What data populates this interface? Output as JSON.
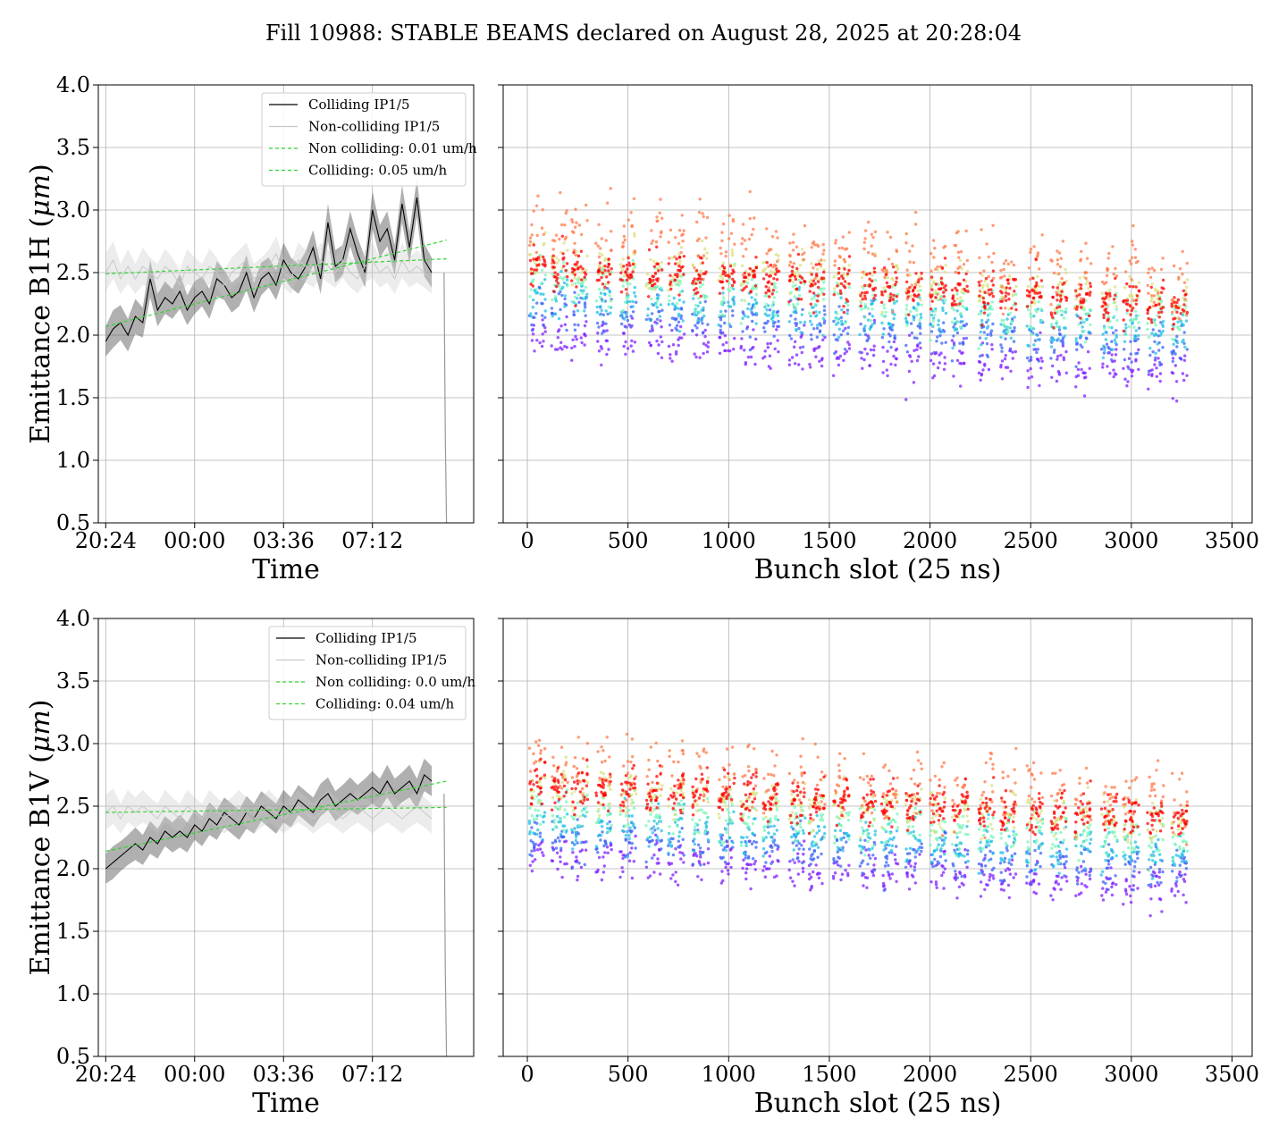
{
  "figure": {
    "title": "Fill 10988: STABLE BEAMS declared on August 28, 2025 at 20:28:04"
  },
  "chart_data": [
    {
      "id": "b1h_time",
      "type": "line",
      "ylabel_main": "Emittance B1H (",
      "ylabel_unit": "μm",
      "ylabel_end": ")",
      "xlabel": "Time",
      "ylim": [
        0.5,
        4.0
      ],
      "yticks": [
        "0.5",
        "1.0",
        "1.5",
        "2.0",
        "2.5",
        "3.0",
        "3.5",
        "4.0"
      ],
      "xlim_hours": [
        -0.3,
        14.9
      ],
      "xticks": [
        {
          "h": 0,
          "label": "20:24"
        },
        {
          "h": 3.6,
          "label": "00:00"
        },
        {
          "h": 7.2,
          "label": "03:36"
        },
        {
          "h": 10.8,
          "label": "07:12"
        }
      ],
      "grid": true,
      "legend": {
        "position": "upper right",
        "entries": [
          "Colliding IP1/5",
          "Non-colliding IP1/5",
          "Non colliding: 0.01 um/h",
          "Colliding: 0.05 um/h"
        ]
      },
      "series": [
        {
          "name": "Colliding IP1/5",
          "color": "#000000",
          "x_hours": [
            0,
            0.3,
            0.6,
            0.9,
            1.2,
            1.5,
            1.8,
            2.1,
            2.4,
            2.7,
            3.0,
            3.3,
            3.6,
            3.9,
            4.2,
            4.5,
            4.8,
            5.1,
            5.4,
            5.7,
            6.0,
            6.3,
            6.6,
            6.9,
            7.2,
            7.5,
            7.8,
            8.1,
            8.4,
            8.7,
            9.0,
            9.3,
            9.6,
            9.9,
            10.2,
            10.5,
            10.8,
            11.1,
            11.4,
            11.7,
            12.0,
            12.3,
            12.6,
            12.9,
            13.2
          ],
          "values": [
            1.95,
            2.05,
            2.1,
            2.0,
            2.15,
            2.1,
            2.45,
            2.2,
            2.3,
            2.25,
            2.35,
            2.2,
            2.3,
            2.35,
            2.25,
            2.45,
            2.4,
            2.3,
            2.35,
            2.5,
            2.3,
            2.45,
            2.5,
            2.4,
            2.6,
            2.5,
            2.45,
            2.55,
            2.7,
            2.45,
            2.9,
            2.55,
            2.6,
            2.85,
            2.65,
            2.5,
            3.0,
            2.75,
            2.85,
            2.6,
            3.05,
            2.7,
            3.1,
            2.6,
            2.5
          ],
          "band": [
            0.12,
            0.15,
            0.14,
            0.13,
            0.14,
            0.12,
            0.15,
            0.13,
            0.13,
            0.12,
            0.14,
            0.12,
            0.13,
            0.12,
            0.12,
            0.14,
            0.12,
            0.12,
            0.12,
            0.14,
            0.12,
            0.13,
            0.12,
            0.12,
            0.14,
            0.12,
            0.12,
            0.12,
            0.14,
            0.12,
            0.15,
            0.13,
            0.12,
            0.14,
            0.13,
            0.12,
            0.15,
            0.13,
            0.14,
            0.12,
            0.15,
            0.13,
            0.15,
            0.13,
            0.12
          ]
        },
        {
          "name": "Non-colliding IP1/5",
          "color": "#c8c8c8",
          "x_hours": [
            0,
            0.3,
            0.6,
            0.9,
            1.2,
            1.5,
            1.8,
            2.1,
            2.4,
            2.7,
            3.0,
            3.3,
            3.6,
            3.9,
            4.2,
            4.5,
            4.8,
            5.1,
            5.4,
            5.7,
            6.0,
            6.3,
            6.6,
            6.9,
            7.2,
            7.5,
            7.8,
            8.1,
            8.4,
            8.7,
            9.0,
            9.3,
            9.6,
            9.9,
            10.2,
            10.5,
            10.8,
            11.1,
            11.4,
            11.7,
            12.0,
            12.3,
            12.6,
            12.9,
            13.2
          ],
          "values": [
            2.5,
            2.6,
            2.45,
            2.55,
            2.45,
            2.55,
            2.5,
            2.45,
            2.55,
            2.5,
            2.4,
            2.55,
            2.5,
            2.45,
            2.55,
            2.5,
            2.4,
            2.5,
            2.55,
            2.6,
            2.45,
            2.5,
            2.55,
            2.65,
            2.5,
            2.45,
            2.6,
            2.55,
            2.5,
            2.6,
            2.55,
            2.5,
            2.6,
            2.5,
            2.45,
            2.55,
            2.6,
            2.5,
            2.55,
            2.45,
            2.6,
            2.5,
            2.55,
            2.5,
            2.45
          ],
          "band": [
            0.15,
            0.15,
            0.12,
            0.14,
            0.12,
            0.15,
            0.12,
            0.12,
            0.14,
            0.12,
            0.12,
            0.14,
            0.12,
            0.12,
            0.14,
            0.12,
            0.12,
            0.12,
            0.13,
            0.14,
            0.12,
            0.12,
            0.13,
            0.14,
            0.12,
            0.12,
            0.14,
            0.13,
            0.12,
            0.14,
            0.13,
            0.12,
            0.14,
            0.12,
            0.12,
            0.13,
            0.14,
            0.12,
            0.13,
            0.12,
            0.14,
            0.12,
            0.13,
            0.12,
            0.12
          ]
        },
        {
          "name": "Non colliding: 0.01 um/h",
          "color": "#2fd62f",
          "dashed": true,
          "x_hours": [
            0,
            13.8
          ],
          "values": [
            2.49,
            2.61
          ]
        },
        {
          "name": "Colliding: 0.05 um/h",
          "color": "#2fd62f",
          "dashed": true,
          "x_hours": [
            0,
            13.8
          ],
          "values": [
            2.07,
            2.76
          ]
        }
      ],
      "end_drop": {
        "x_hours": [
          13.7,
          13.75,
          13.8
        ],
        "values": [
          2.5,
          1.2,
          0.5
        ]
      }
    },
    {
      "id": "b1h_bunch",
      "type": "scatter",
      "xlabel": "Bunch slot (25 ns)",
      "xlim": [
        -120,
        3600
      ],
      "xticks": [
        0,
        500,
        1000,
        1500,
        2000,
        2500,
        3000,
        3500
      ],
      "ylim": [
        0.5,
        4.0
      ],
      "grid": true,
      "colormap": "rainbow (purple = early, red = late)",
      "trains_start_slot": [
        10,
        120,
        220,
        340,
        460,
        590,
        700,
        820,
        950,
        1060,
        1170,
        1300,
        1400,
        1520,
        1650,
        1760,
        1880,
        2000,
        2110,
        2240,
        2350,
        2480,
        2600,
        2720,
        2850,
        2960,
        3080,
        3200
      ],
      "train_len_slots": 80,
      "levels": [
        {
          "color": "#7f1fff",
          "center": 1.95
        },
        {
          "color": "#3b63f5",
          "center": 2.15
        },
        {
          "color": "#21c0e6",
          "center": 2.25
        },
        {
          "color": "#7af5b8",
          "center": 2.38
        },
        {
          "color": "#d8e27e",
          "center": 2.55
        },
        {
          "color": "#ff7a4a",
          "center": 2.75
        },
        {
          "color": "#ff0000",
          "center": 2.5
        }
      ],
      "trend_per_1000_slots": -0.1
    },
    {
      "id": "b1v_time",
      "type": "line",
      "ylabel_main": "Emittance B1V (",
      "ylabel_unit": "μm",
      "ylabel_end": ")",
      "xlabel": "Time",
      "ylim": [
        0.5,
        4.0
      ],
      "yticks": [
        "0.5",
        "1.0",
        "1.5",
        "2.0",
        "2.5",
        "3.0",
        "3.5",
        "4.0"
      ],
      "xlim_hours": [
        -0.3,
        14.9
      ],
      "xticks": [
        {
          "h": 0,
          "label": "20:24"
        },
        {
          "h": 3.6,
          "label": "00:00"
        },
        {
          "h": 7.2,
          "label": "03:36"
        },
        {
          "h": 10.8,
          "label": "07:12"
        }
      ],
      "grid": true,
      "legend": {
        "position": "upper right",
        "entries": [
          "Colliding IP1/5",
          "Non-colliding IP1/5",
          "Non colliding: 0.0 um/h",
          "Colliding: 0.04 um/h"
        ]
      },
      "series": [
        {
          "name": "Colliding IP1/5",
          "color": "#000000",
          "x_hours": [
            0,
            0.3,
            0.6,
            0.9,
            1.2,
            1.5,
            1.8,
            2.1,
            2.4,
            2.7,
            3.0,
            3.3,
            3.6,
            3.9,
            4.2,
            4.5,
            4.8,
            5.1,
            5.4,
            5.7,
            6.0,
            6.3,
            6.6,
            6.9,
            7.2,
            7.5,
            7.8,
            8.1,
            8.4,
            8.7,
            9.0,
            9.3,
            9.6,
            9.9,
            10.2,
            10.5,
            10.8,
            11.1,
            11.4,
            11.7,
            12.0,
            12.3,
            12.6,
            12.9,
            13.2
          ],
          "values": [
            2.0,
            2.05,
            2.1,
            2.15,
            2.2,
            2.15,
            2.25,
            2.2,
            2.3,
            2.25,
            2.3,
            2.25,
            2.35,
            2.3,
            2.4,
            2.35,
            2.45,
            2.4,
            2.35,
            2.45,
            2.4,
            2.5,
            2.45,
            2.4,
            2.5,
            2.45,
            2.55,
            2.5,
            2.45,
            2.55,
            2.6,
            2.5,
            2.55,
            2.6,
            2.55,
            2.6,
            2.65,
            2.6,
            2.7,
            2.6,
            2.65,
            2.7,
            2.6,
            2.75,
            2.7
          ],
          "band": [
            0.12,
            0.13,
            0.12,
            0.12,
            0.13,
            0.12,
            0.13,
            0.12,
            0.12,
            0.12,
            0.13,
            0.12,
            0.12,
            0.12,
            0.13,
            0.12,
            0.12,
            0.12,
            0.12,
            0.13,
            0.12,
            0.12,
            0.12,
            0.12,
            0.13,
            0.12,
            0.12,
            0.12,
            0.12,
            0.13,
            0.13,
            0.12,
            0.12,
            0.13,
            0.12,
            0.12,
            0.13,
            0.12,
            0.13,
            0.12,
            0.12,
            0.13,
            0.12,
            0.13,
            0.12
          ]
        },
        {
          "name": "Non-colliding IP1/5",
          "color": "#c8c8c8",
          "x_hours": [
            0,
            0.3,
            0.6,
            0.9,
            1.2,
            1.5,
            1.8,
            2.1,
            2.4,
            2.7,
            3.0,
            3.3,
            3.6,
            3.9,
            4.2,
            4.5,
            4.8,
            5.1,
            5.4,
            5.7,
            6.0,
            6.3,
            6.6,
            6.9,
            7.2,
            7.5,
            7.8,
            8.1,
            8.4,
            8.7,
            9.0,
            9.3,
            9.6,
            9.9,
            10.2,
            10.5,
            10.8,
            11.1,
            11.4,
            11.7,
            12.0,
            12.3,
            12.6,
            12.9,
            13.2
          ],
          "values": [
            2.45,
            2.5,
            2.4,
            2.5,
            2.45,
            2.5,
            2.45,
            2.4,
            2.5,
            2.45,
            2.4,
            2.5,
            2.45,
            2.4,
            2.5,
            2.45,
            2.4,
            2.45,
            2.5,
            2.45,
            2.4,
            2.45,
            2.5,
            2.45,
            2.4,
            2.45,
            2.5,
            2.45,
            2.4,
            2.45,
            2.5,
            2.45,
            2.4,
            2.45,
            2.5,
            2.45,
            2.4,
            2.45,
            2.5,
            2.45,
            2.4,
            2.45,
            2.5,
            2.45,
            2.4
          ],
          "band": [
            0.14,
            0.14,
            0.12,
            0.13,
            0.12,
            0.13,
            0.12,
            0.12,
            0.13,
            0.12,
            0.12,
            0.13,
            0.12,
            0.12,
            0.13,
            0.12,
            0.12,
            0.12,
            0.13,
            0.12,
            0.12,
            0.12,
            0.13,
            0.12,
            0.12,
            0.12,
            0.13,
            0.12,
            0.12,
            0.12,
            0.13,
            0.12,
            0.12,
            0.12,
            0.13,
            0.12,
            0.12,
            0.12,
            0.13,
            0.12,
            0.12,
            0.12,
            0.13,
            0.12,
            0.12
          ]
        },
        {
          "name": "Non colliding: 0.0 um/h",
          "color": "#2fd62f",
          "dashed": true,
          "x_hours": [
            0,
            13.8
          ],
          "values": [
            2.45,
            2.49
          ]
        },
        {
          "name": "Colliding: 0.04 um/h",
          "color": "#2fd62f",
          "dashed": true,
          "x_hours": [
            0,
            13.8
          ],
          "values": [
            2.14,
            2.7
          ]
        }
      ],
      "end_drop": {
        "x_hours": [
          13.7,
          13.75,
          13.8
        ],
        "values": [
          2.6,
          1.2,
          0.5
        ]
      }
    },
    {
      "id": "b1v_bunch",
      "type": "scatter",
      "xlabel": "Bunch slot (25 ns)",
      "xlim": [
        -120,
        3600
      ],
      "xticks": [
        0,
        500,
        1000,
        1500,
        2000,
        2500,
        3000,
        3500
      ],
      "ylim": [
        0.5,
        4.0
      ],
      "grid": true,
      "colormap": "rainbow (purple = early, red = late)",
      "trains_start_slot": [
        10,
        120,
        220,
        340,
        460,
        590,
        700,
        820,
        950,
        1060,
        1170,
        1300,
        1400,
        1520,
        1650,
        1760,
        1880,
        2000,
        2110,
        2240,
        2350,
        2480,
        2600,
        2720,
        2850,
        2960,
        3080,
        3200
      ],
      "train_len_slots": 80,
      "levels": [
        {
          "color": "#7f1fff",
          "center": 2.05
        },
        {
          "color": "#3b63f5",
          "center": 2.2
        },
        {
          "color": "#21c0e6",
          "center": 2.3
        },
        {
          "color": "#7af5b8",
          "center": 2.42
        },
        {
          "color": "#d8e27e",
          "center": 2.58
        },
        {
          "color": "#ff7a4a",
          "center": 2.75
        },
        {
          "color": "#ff0000",
          "center": 2.6
        }
      ],
      "trend_per_1000_slots": -0.08
    }
  ]
}
